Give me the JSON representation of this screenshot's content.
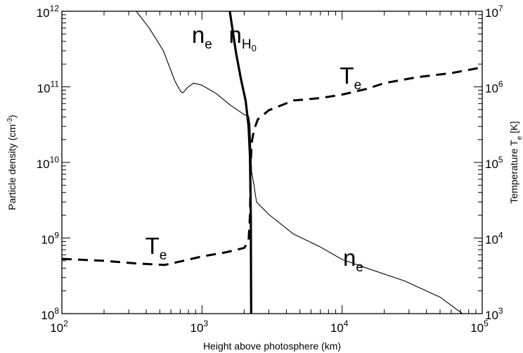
{
  "chart_data": {
    "type": "line",
    "title": "",
    "xlabel": "Height above photosphere (km)",
    "ylabel_left": "Particle density (cm",
    "ylabel_left_sup": "-3",
    "ylabel_left_close": ")",
    "ylabel_right": "Temperature T",
    "ylabel_right_sub": "e",
    "ylabel_right_unit": " [K]",
    "xscale": "log",
    "yscale": "log",
    "xlim": [
      100,
      100000
    ],
    "ylim_left": [
      100000000,
      1000000000000
    ],
    "ylim_right": [
      1000,
      10000000
    ],
    "grid": false,
    "x_ticks": [
      {
        "base": "10",
        "exp": "2"
      },
      {
        "base": "10",
        "exp": "3"
      },
      {
        "base": "10",
        "exp": "4"
      },
      {
        "base": "10",
        "exp": "5"
      }
    ],
    "y_left_ticks": [
      {
        "base": "10",
        "exp": "8"
      },
      {
        "base": "10",
        "exp": "9"
      },
      {
        "base": "10",
        "exp": "10"
      },
      {
        "base": "10",
        "exp": "11"
      },
      {
        "base": "10",
        "exp": "12"
      }
    ],
    "y_right_ticks": [
      {
        "base": "10",
        "exp": "3"
      },
      {
        "base": "10",
        "exp": "4"
      },
      {
        "base": "10",
        "exp": "5"
      },
      {
        "base": "10",
        "exp": "6"
      },
      {
        "base": "10",
        "exp": "7"
      }
    ],
    "series": [
      {
        "id": "ne",
        "axis": "left",
        "style": "thin",
        "points": [
          [
            340,
            1000000000000.0
          ],
          [
            420,
            600000000000.0
          ],
          [
            530,
            300000000000.0
          ],
          [
            640,
            120000000000.0
          ],
          [
            700,
            88000000000.0
          ],
          [
            730,
            83000000000.0
          ],
          [
            790,
            98000000000.0
          ],
          [
            870,
            112000000000.0
          ],
          [
            1000,
            105000000000.0
          ],
          [
            1260,
            82000000000.0
          ],
          [
            1580,
            58000000000.0
          ],
          [
            2000,
            43000000000.0
          ],
          [
            2150,
            41000000000.0
          ],
          [
            2200,
            32000000000.0
          ],
          [
            2260,
            7500000000.0
          ],
          [
            2350,
            5000000000.0
          ],
          [
            2450,
            3000000000.0
          ],
          [
            3000,
            2050000000.0
          ],
          [
            4500,
            1130000000.0
          ],
          [
            7000,
            760000000.0
          ],
          [
            10000,
            520000000.0
          ],
          [
            15000,
            400000000.0
          ],
          [
            28000,
            270000000.0
          ],
          [
            50000,
            165000000.0
          ],
          [
            80000,
            87000000.0
          ]
        ]
      },
      {
        "id": "nH0",
        "axis": "left",
        "style": "thick",
        "points": [
          [
            1580,
            1000000000000.0
          ],
          [
            1750,
            280000000000.0
          ],
          [
            1900,
            125000000000.0
          ],
          [
            2050,
            65000000000.0
          ],
          [
            2150,
            30000000000.0
          ],
          [
            2200,
            12000000000.0
          ],
          [
            2230,
            2000000000.0
          ],
          [
            2240,
            300000000.0
          ],
          [
            2245,
            100000000.0
          ]
        ]
      },
      {
        "id": "Te",
        "axis": "right",
        "style": "dashed",
        "points": [
          [
            100,
            5300
          ],
          [
            200,
            5000
          ],
          [
            350,
            4600
          ],
          [
            540,
            4400
          ],
          [
            700,
            4900
          ],
          [
            1000,
            5700
          ],
          [
            1500,
            6500
          ],
          [
            2000,
            7400
          ],
          [
            2150,
            9000
          ],
          [
            2200,
            20000
          ],
          [
            2230,
            100000
          ],
          [
            2260,
            180000
          ],
          [
            2350,
            270000
          ],
          [
            2500,
            370000
          ],
          [
            3000,
            490000
          ],
          [
            4500,
            660000
          ],
          [
            7000,
            710000
          ],
          [
            10000,
            790000
          ],
          [
            15000,
            940000
          ],
          [
            20000,
            1120000
          ],
          [
            35000,
            1350000
          ],
          [
            60000,
            1520000
          ],
          [
            100000,
            1810000
          ]
        ]
      }
    ],
    "annotations": [
      {
        "base": "n",
        "sub": "e",
        "x": 1000,
        "y": 380000000000.0,
        "axis": "left"
      },
      {
        "base": "n",
        "sub": "H",
        "sub2": "0",
        "x": 1950,
        "y": 380000000000.0,
        "axis": "left"
      },
      {
        "base": "T",
        "sub": "e",
        "x": 11500,
        "y": 1100000,
        "axis": "right"
      },
      {
        "base": "T",
        "sub": "e",
        "x": 470,
        "y": 6200,
        "axis": "right"
      },
      {
        "base": "n",
        "sub": "e",
        "x": 12000,
        "y": 430000000.0,
        "axis": "left"
      }
    ]
  }
}
